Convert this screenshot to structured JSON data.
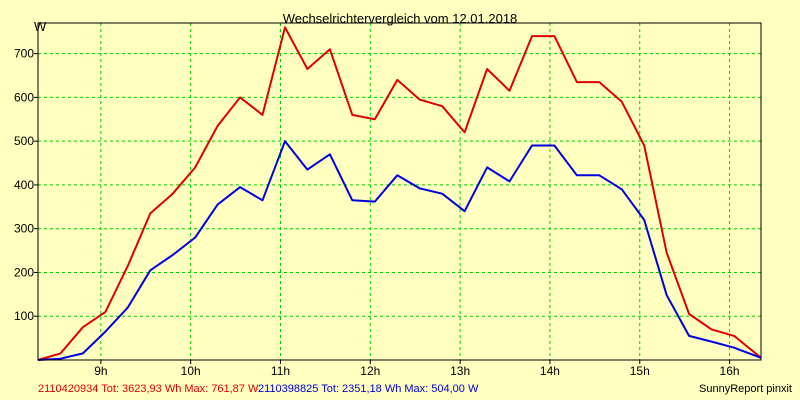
{
  "chart_data": {
    "type": "line",
    "title": "Wechselrichtervergleich vom 12.01.2018",
    "ylabel": "W",
    "xlabel": "",
    "ylim": [
      0,
      770
    ],
    "xlim": [
      8.3,
      16.35
    ],
    "y_ticks": [
      100,
      200,
      300,
      400,
      500,
      600,
      700
    ],
    "x_ticks": [
      {
        "value": 9,
        "label": "9h"
      },
      {
        "value": 10,
        "label": "10h"
      },
      {
        "value": 11,
        "label": "11h"
      },
      {
        "value": 12,
        "label": "12h"
      },
      {
        "value": 13,
        "label": "13h"
      },
      {
        "value": 14,
        "label": "14h"
      },
      {
        "value": 15,
        "label": "15h"
      },
      {
        "value": 16,
        "label": "16h"
      }
    ],
    "grid": true,
    "series": [
      {
        "name": "2110420934",
        "summary": "2110420934 Tot: 3623,93 Wh Max: 761,87 W",
        "color": "#e00000",
        "x": [
          8.3,
          8.55,
          8.8,
          9.05,
          9.3,
          9.55,
          9.8,
          10.05,
          10.3,
          10.55,
          10.8,
          11.05,
          11.3,
          11.55,
          11.8,
          12.05,
          12.3,
          12.55,
          12.8,
          13.05,
          13.3,
          13.55,
          13.8,
          14.05,
          14.3,
          14.55,
          14.8,
          15.05,
          15.3,
          15.55,
          15.8,
          16.05,
          16.35
        ],
        "y": [
          0,
          15,
          75,
          110,
          215,
          335,
          380,
          440,
          535,
          600,
          560,
          760,
          665,
          710,
          560,
          550,
          640,
          595,
          580,
          520,
          665,
          615,
          740,
          740,
          635,
          635,
          590,
          490,
          245,
          105,
          70,
          55,
          5
        ]
      },
      {
        "name": "2110398825",
        "summary": "2110398825 Tot: 2351,18 Wh Max: 504,00 W",
        "color": "#0000e0",
        "x": [
          8.3,
          8.55,
          8.8,
          9.05,
          9.3,
          9.55,
          9.8,
          10.05,
          10.3,
          10.55,
          10.8,
          11.05,
          11.3,
          11.55,
          11.8,
          12.05,
          12.3,
          12.55,
          12.8,
          13.05,
          13.3,
          13.55,
          13.8,
          14.05,
          14.3,
          14.55,
          14.8,
          15.05,
          15.3,
          15.55,
          15.8,
          16.05,
          16.35
        ],
        "y": [
          0,
          3,
          15,
          65,
          120,
          205,
          240,
          280,
          355,
          395,
          365,
          500,
          435,
          470,
          365,
          362,
          422,
          392,
          380,
          340,
          440,
          408,
          490,
          490,
          422,
          422,
          390,
          320,
          148,
          55,
          42,
          28,
          5
        ]
      }
    ]
  },
  "footer": {
    "credit": "SunnyReport pinxit"
  }
}
